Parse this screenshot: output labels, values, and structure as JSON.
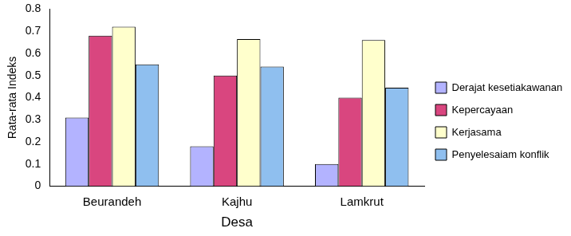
{
  "chart_data": {
    "type": "bar",
    "x_label": "Desa",
    "y_label": "Rata-rata Indeks",
    "categories": [
      "Beurandeh",
      "Kajhu",
      "Lamkrut"
    ],
    "series": [
      {
        "name": "Derajat kesetiakawanan",
        "color": "#b3b3ff",
        "values": [
          0.31,
          0.18,
          0.1
        ]
      },
      {
        "name": "Kepercayaan",
        "color": "#d9467f",
        "values": [
          0.68,
          0.5,
          0.4
        ]
      },
      {
        "name": "Kerjasama",
        "color": "#ffffcc",
        "values": [
          0.72,
          0.665,
          0.66
        ]
      },
      {
        "name": "Penyelesaiam konflik",
        "color": "#8fbfef",
        "values": [
          0.55,
          0.54,
          0.445
        ]
      }
    ],
    "ylim": [
      0,
      0.8
    ],
    "yticks": [
      0,
      0.1,
      0.2,
      0.3,
      0.4,
      0.5,
      0.6,
      0.7,
      0.8
    ],
    "grid": false,
    "legend": "right"
  }
}
